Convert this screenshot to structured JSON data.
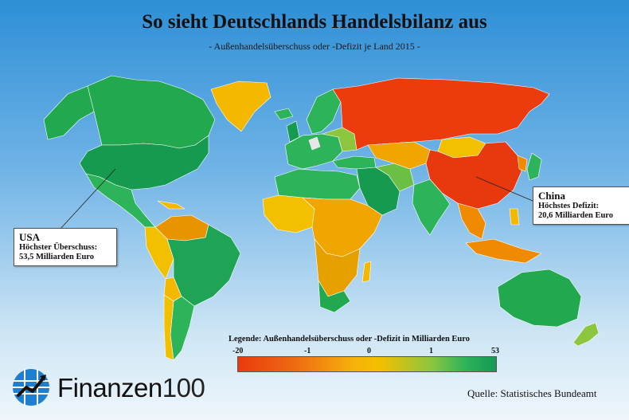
{
  "title": "So sieht Deutschlands Handelsbilanz aus",
  "subtitle": "- Außenhandelsüberschuss oder -Defizit je Land 2015 -",
  "callouts": {
    "usa": {
      "name": "USA",
      "label": "Höchster Überschuss:",
      "value": "53,5 Milliarden Euro"
    },
    "china": {
      "name": "China",
      "label": "Höchstes Defizit:",
      "value": "20,6 Milliarden Euro"
    }
  },
  "legend": {
    "title": "Legende: Außenhandelsüberschuss oder -Defizit in Milliarden Euro",
    "ticks": [
      "-20",
      "-1",
      "0",
      "1",
      "53"
    ]
  },
  "colors": {
    "ocean_top": "#2e8fd6",
    "deficit_high": "#ea3a0e",
    "deficit_low": "#f6b20a",
    "surplus_low": "#8cc63f",
    "surplus_high": "#149a55",
    "no_data": "#e6e6e6"
  },
  "logo": {
    "name": "Finanzen",
    "number": "100",
    "icon": "finanzen100-logo-icon"
  },
  "source": "Quelle: Statistisches Bundeamt"
}
